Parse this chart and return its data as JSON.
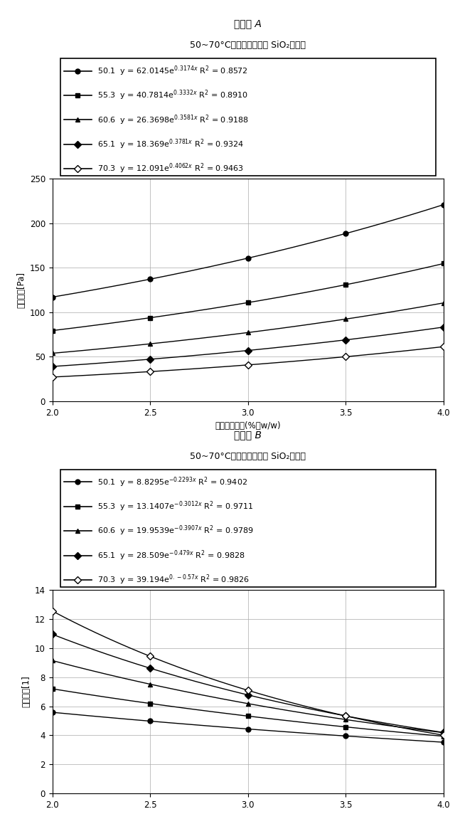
{
  "panel_a_title": "パネル A",
  "panel_a_subtitle": "50~70°Cでの損失係数対 SiO₂含有量",
  "panel_b_title": "パネル B",
  "panel_b_subtitle": "50~70°Cでの減衰定数対 SiO₂含有量",
  "xlabel": "二酸化ケイ素(%、w/w)",
  "panel_a_ylabel": "損失係数[Pa]",
  "panel_b_ylabel": "減衰定数[1]",
  "x_values": [
    2.0,
    2.5,
    3.0,
    3.5,
    4.0
  ],
  "panel_a_series": [
    {
      "temp": "50.1",
      "A": 62.0145,
      "b": 0.3174,
      "marker": "o",
      "fill": true,
      "eq": "y = 62.0145e^{0.3174x}",
      "r2": "0.8572"
    },
    {
      "temp": "55.3",
      "A": 40.7814,
      "b": 0.3332,
      "marker": "s",
      "fill": true,
      "eq": "y = 40.7814e^{0.3332x}",
      "r2": "0.8910"
    },
    {
      "temp": "60.6",
      "A": 26.3698,
      "b": 0.3581,
      "marker": "^",
      "fill": true,
      "eq": "y = 26.3698e^{0.3581x}",
      "r2": "0.9188"
    },
    {
      "temp": "65.1",
      "A": 18.369,
      "b": 0.3781,
      "marker": "D",
      "fill": true,
      "eq": "y = 18.369e^{0.3781x}",
      "r2": "0.9324"
    },
    {
      "temp": "70.3",
      "A": 12.091,
      "b": 0.4062,
      "marker": "D",
      "fill": false,
      "eq": "y = 12.091e^{0.4062x}",
      "r2": "0.9463"
    }
  ],
  "panel_b_series": [
    {
      "temp": "50.1",
      "A": 8.8295,
      "b": -0.2293,
      "marker": "o",
      "fill": true,
      "eq": "y = 8.8295e^{-0.2293x}",
      "r2": "0.9402"
    },
    {
      "temp": "55.3",
      "A": 13.1407,
      "b": -0.3012,
      "marker": "s",
      "fill": true,
      "eq": "y = 13.1407e^{-0.3012x}",
      "r2": "0.9711"
    },
    {
      "temp": "60.6",
      "A": 19.9539,
      "b": -0.3907,
      "marker": "^",
      "fill": true,
      "eq": "y = 19.9539e^{-0.3907x}",
      "r2": "0.9789"
    },
    {
      "temp": "65.1",
      "A": 28.509,
      "b": -0.479,
      "marker": "D",
      "fill": true,
      "eq": "y = 28.509e^{-0.479x}",
      "r2": "0.9828"
    },
    {
      "temp": "70.3",
      "A": 39.194,
      "b": -0.57,
      "marker": "D",
      "fill": false,
      "eq": "y = 39.194e^{0.-0.57x}",
      "r2": "0.9826"
    }
  ],
  "panel_a_ylim": [
    0,
    250
  ],
  "panel_a_yticks": [
    0,
    50,
    100,
    150,
    200,
    250
  ],
  "panel_b_ylim": [
    0,
    14
  ],
  "panel_b_yticks": [
    0,
    2,
    4,
    6,
    8,
    10,
    12,
    14
  ],
  "xlim": [
    2.0,
    4.0
  ],
  "xticks": [
    2.0,
    2.5,
    3.0,
    3.5,
    4.0
  ]
}
